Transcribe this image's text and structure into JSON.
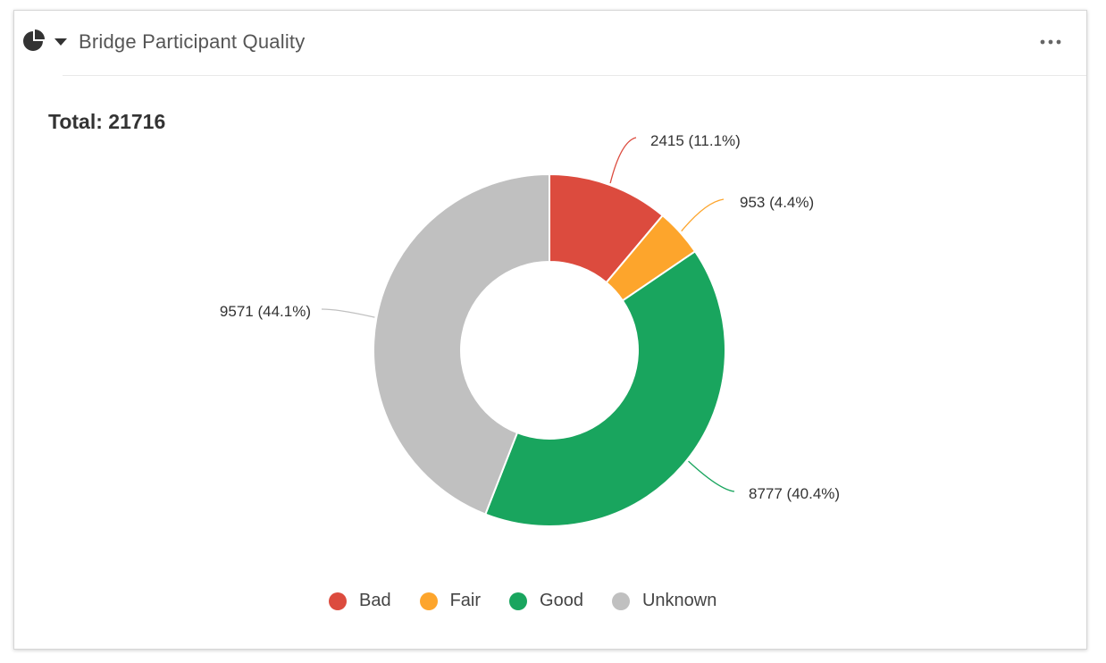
{
  "header": {
    "title": "Bridge Participant Quality",
    "icon": "pie-chart-icon",
    "caret_icon": "caret-down-icon",
    "menu_icon": "more-horizontal-icon"
  },
  "total_label": "Total: 21716",
  "chart_data": {
    "type": "pie",
    "donut": true,
    "total": 21716,
    "title": "",
    "legend_position": "bottom",
    "slices": [
      {
        "name": "Bad",
        "value": 2415,
        "label": "2415 (11.1%)",
        "color": "#dc4b3e"
      },
      {
        "name": "Fair",
        "value": 953,
        "label": "953 (4.4%)",
        "color": "#fda52c"
      },
      {
        "name": "Good",
        "value": 8777,
        "label": "8777 (40.4%)",
        "color": "#19a55e"
      },
      {
        "name": "Unknown",
        "value": 9571,
        "label": "9571 (44.1%)",
        "color": "#c0c0c0"
      }
    ]
  },
  "legend": [
    {
      "label": "Bad",
      "color": "#dc4b3e"
    },
    {
      "label": "Fair",
      "color": "#fda52c"
    },
    {
      "label": "Good",
      "color": "#19a55e"
    },
    {
      "label": "Unknown",
      "color": "#c0c0c0"
    }
  ]
}
